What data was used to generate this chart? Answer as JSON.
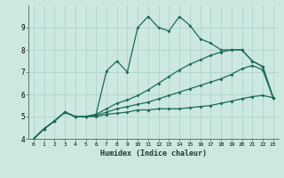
{
  "xlabel": "Humidex (Indice chaleur)",
  "background_color": "#cce8e0",
  "grid_color": "#aacfc8",
  "line_color": "#1a6b5a",
  "xlim": [
    -0.5,
    23.5
  ],
  "ylim": [
    4,
    10
  ],
  "yticks": [
    4,
    5,
    6,
    7,
    8,
    9
  ],
  "xticks": [
    0,
    1,
    2,
    3,
    4,
    5,
    6,
    7,
    8,
    9,
    10,
    11,
    12,
    13,
    14,
    15,
    16,
    17,
    18,
    19,
    20,
    21,
    22,
    23
  ],
  "series1_x": [
    0,
    1,
    2,
    3,
    4,
    5,
    6,
    7,
    8,
    9,
    10,
    11,
    12,
    13,
    14,
    15,
    16,
    17,
    18,
    19,
    20,
    21,
    22,
    23
  ],
  "series1_y": [
    4.0,
    4.45,
    4.8,
    5.2,
    5.0,
    5.0,
    5.0,
    5.1,
    5.15,
    5.2,
    5.3,
    5.3,
    5.35,
    5.35,
    5.35,
    5.4,
    5.45,
    5.5,
    5.6,
    5.7,
    5.8,
    5.9,
    5.95,
    5.85
  ],
  "series2_x": [
    0,
    1,
    2,
    3,
    4,
    5,
    6,
    7,
    8,
    9,
    10,
    11,
    12,
    13,
    14,
    15,
    16,
    17,
    18,
    19,
    20,
    21,
    22,
    23
  ],
  "series2_y": [
    4.0,
    4.45,
    4.8,
    5.2,
    5.0,
    5.0,
    5.05,
    5.2,
    5.35,
    5.45,
    5.55,
    5.65,
    5.8,
    5.95,
    6.1,
    6.25,
    6.4,
    6.55,
    6.7,
    6.9,
    7.15,
    7.3,
    7.1,
    5.85
  ],
  "series3_x": [
    0,
    1,
    2,
    3,
    4,
    5,
    6,
    7,
    8,
    9,
    10,
    11,
    12,
    13,
    14,
    15,
    16,
    17,
    18,
    19,
    20,
    21,
    22,
    23
  ],
  "series3_y": [
    4.0,
    4.45,
    4.8,
    5.2,
    5.0,
    5.0,
    5.1,
    5.35,
    5.6,
    5.75,
    5.95,
    6.2,
    6.5,
    6.8,
    7.1,
    7.35,
    7.55,
    7.75,
    7.9,
    8.0,
    8.0,
    7.5,
    7.25,
    5.85
  ],
  "series4_x": [
    0,
    1,
    2,
    3,
    4,
    5,
    6,
    7,
    8,
    9,
    10,
    11,
    12,
    13,
    14,
    15,
    16,
    17,
    18,
    19,
    20,
    21,
    22,
    23
  ],
  "series4_y": [
    4.0,
    4.45,
    4.8,
    5.2,
    5.0,
    5.0,
    5.1,
    7.05,
    7.5,
    7.0,
    9.0,
    9.5,
    9.0,
    8.85,
    9.5,
    9.1,
    8.5,
    8.3,
    8.0,
    8.0,
    8.0,
    7.5,
    7.25,
    5.85
  ]
}
